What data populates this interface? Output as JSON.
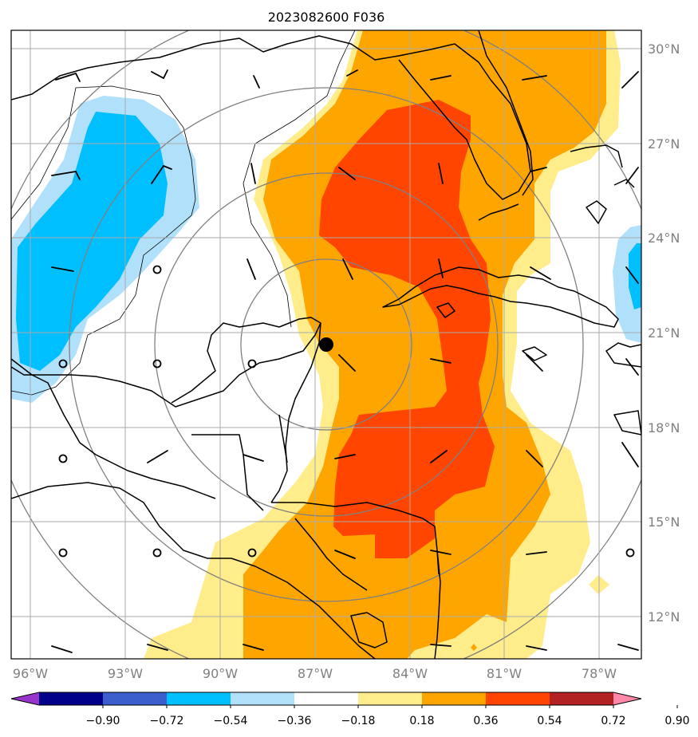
{
  "title": "2023082600 F036",
  "lon_labels": [
    "96°W",
    "93°W",
    "90°W",
    "87°W",
    "84°W",
    "81°W",
    "78°W"
  ],
  "lat_labels": [
    "30°N",
    "27°N",
    "24°N",
    "21°N",
    "18°N",
    "15°N",
    "12°N"
  ],
  "colorbar": {
    "ticks": [
      "−0.90",
      "−0.72",
      "−0.54",
      "−0.36",
      "−0.18",
      "0.18",
      "0.36",
      "0.54",
      "0.72",
      "0.90"
    ],
    "colors": [
      "#9933cc",
      "#00008b",
      "#3a5fcd",
      "#00bfff",
      "#b0e0fa",
      "#ffffff",
      "#ffec8b",
      "#ffa500",
      "#ff4500",
      "#b22222",
      "#ff88aa"
    ]
  },
  "fill_colors": {
    "neg_light": "#b0e0fa",
    "neg_mid": "#00bfff",
    "pos_light": "#ffec8b",
    "pos_mid": "#ffa500",
    "pos_high": "#ff4500"
  },
  "center_marker": {
    "lon": -86.7,
    "lat": 20.6
  }
}
